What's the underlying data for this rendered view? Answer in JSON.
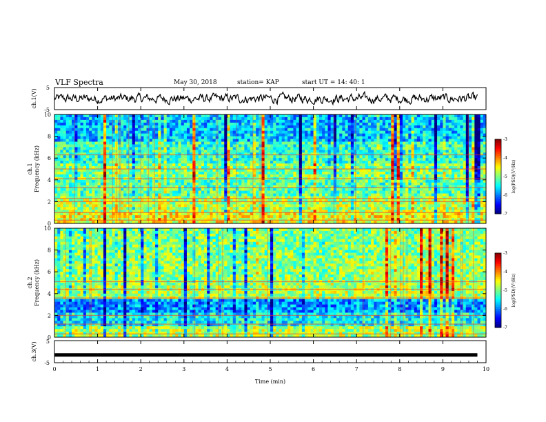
{
  "header": {
    "title": "VLF Spectra",
    "date": "May 30, 2018",
    "station": "station= KAP",
    "start": "start  UT  =   14: 40: 1"
  },
  "chart_data": [
    {
      "type": "line",
      "panel": "ch1-waveform",
      "ylabel": "ch.1(V)",
      "ylim": [
        -5,
        5
      ],
      "yticks": [
        "5",
        "-5"
      ],
      "xlim": [
        0,
        10
      ],
      "note_values": "noisy waveform trace roughly between -3 and 3 V across 0-9.8 min"
    },
    {
      "type": "heatmap",
      "panel": "ch1-spectrogram",
      "ylabel_line1": "ch.1",
      "ylabel_line2": "Frequency  (kHz)",
      "ylim": [
        0,
        10
      ],
      "yticks": [
        "0",
        "2",
        "4",
        "6",
        "8",
        "10"
      ],
      "xlim": [
        0,
        10
      ],
      "colorbar": {
        "label": "log(PSD)(V²/Hz)",
        "range": [
          -7,
          -3
        ],
        "ticks": [
          "-3",
          "-4",
          "-5",
          "-6",
          "-7"
        ]
      },
      "bands_khz": [
        0.3,
        1.0,
        2.0,
        2.3,
        3.3,
        4.1,
        5.0,
        6.3
      ]
    },
    {
      "type": "heatmap",
      "panel": "ch2-spectrogram",
      "ylabel_line1": "ch.2",
      "ylabel_line2": "Frequency  (kHz)",
      "ylim": [
        0,
        10
      ],
      "yticks": [
        "0",
        "2",
        "4",
        "6",
        "8",
        "10"
      ],
      "xlim": [
        0,
        10
      ],
      "colorbar": {
        "label": "log(PSD)(V²/Hz)",
        "range": [
          -7,
          -3
        ],
        "ticks": [
          "-3",
          "-4",
          "-5",
          "-6",
          "-7"
        ]
      },
      "bands_khz": [
        0.3,
        1.2,
        2.0,
        3.6,
        4.4,
        5.1
      ]
    },
    {
      "type": "line",
      "panel": "ch3-waveform",
      "ylabel": "ch.3(V)",
      "ylim": [
        -5,
        5
      ],
      "yticks": [
        "5",
        "-5"
      ],
      "xlim": [
        0,
        10
      ],
      "xlabel": "Time  (min)",
      "xticks": [
        "0",
        "1",
        "2",
        "3",
        "4",
        "5",
        "6",
        "7",
        "8",
        "9",
        "10"
      ],
      "constant_value": -1.5
    }
  ]
}
